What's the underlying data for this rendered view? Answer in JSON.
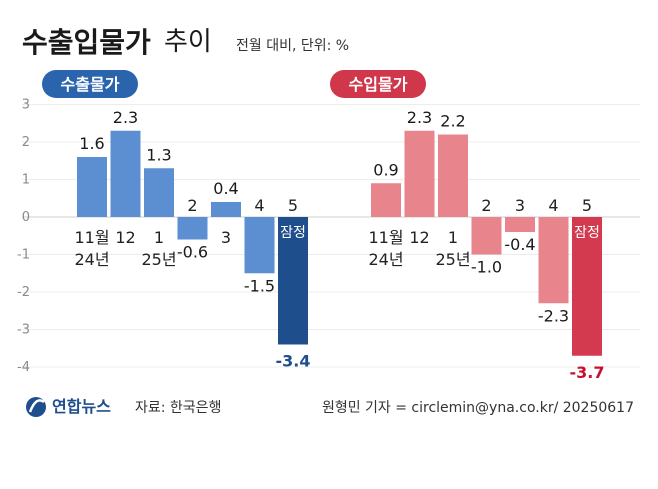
{
  "header": {
    "title_bold": "수출입물가",
    "title_light": "추이",
    "subtitle": "전월 대비, 단위: %"
  },
  "footer": {
    "logo_text": "연합뉴스",
    "source": "자료: 한국은행",
    "credit": "원형민 기자 = circlemin@yna.co.kr/ 20250617"
  },
  "chart_data": [
    {
      "type": "bar",
      "legend_label": "수출물가",
      "color": "#5b8fd1",
      "highlight_color": "#1f4e8c",
      "categories": [
        "11월\n24년",
        "12",
        "1\n25년",
        "2",
        "3",
        "4",
        "5"
      ],
      "values": [
        1.6,
        2.3,
        1.3,
        -0.6,
        0.4,
        -1.5,
        -3.4
      ],
      "value_labels": [
        "1.6",
        "2.3",
        "1.3",
        "-0.6",
        "0.4",
        "-1.5",
        "-3.4"
      ],
      "annotation": "잠정",
      "yticks": [
        "3",
        "2",
        "1",
        "0",
        "-1",
        "-2",
        "-3",
        "-4"
      ],
      "ylim": [
        -4,
        3
      ]
    },
    {
      "type": "bar",
      "legend_label": "수입물가",
      "color": "#e8848c",
      "highlight_color": "#d43a4f",
      "categories": [
        "11월\n24년",
        "12",
        "1\n25년",
        "2",
        "3",
        "4",
        "5"
      ],
      "values": [
        0.9,
        2.3,
        2.2,
        -1.0,
        -0.4,
        -2.3,
        -3.7
      ],
      "value_labels": [
        "0.9",
        "2.3",
        "2.2",
        "-1.0",
        "-0.4",
        "-2.3",
        "-3.7"
      ],
      "annotation": "잠정",
      "ylim": [
        -4,
        3
      ]
    }
  ],
  "colors": {
    "export_dark": "#1f4e8c",
    "import_dark": "#c8102e",
    "export_legend_bg": "#2a64ad",
    "import_legend_bg": "#d0374b"
  }
}
